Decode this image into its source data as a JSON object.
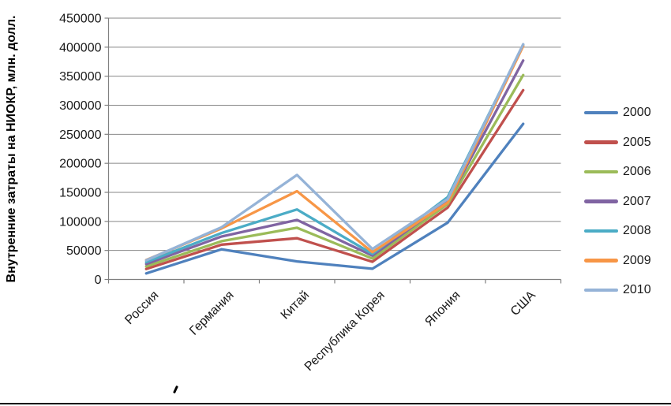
{
  "page": {
    "background": "#ffffff",
    "bottom_rule_color": "#000000"
  },
  "chart_data": {
    "type": "line",
    "title": "",
    "xlabel": "",
    "ylabel": "Внутренние затраты на НИОКР, млн. долл.",
    "categories": [
      "Россия",
      "Германия",
      "Китай",
      "Республика Корея",
      "Япония",
      "США"
    ],
    "series": [
      {
        "name": "2000",
        "color": "#4F81BD",
        "values": [
          10500,
          52000,
          31000,
          18500,
          98000,
          268000
        ]
      },
      {
        "name": "2005",
        "color": "#C0504D",
        "values": [
          18000,
          60000,
          71000,
          30500,
          124000,
          326000
        ]
      },
      {
        "name": "2006",
        "color": "#9BBB59",
        "values": [
          22500,
          66000,
          89000,
          36000,
          130000,
          352000
        ]
      },
      {
        "name": "2007",
        "color": "#8064A2",
        "values": [
          26500,
          74000,
          102500,
          41000,
          134500,
          377000
        ]
      },
      {
        "name": "2008",
        "color": "#4BACC6",
        "values": [
          30000,
          80000,
          120500,
          44000,
          142000,
          404000
        ]
      },
      {
        "name": "2009",
        "color": "#F79646",
        "values": [
          33500,
          88000,
          152000,
          47000,
          132500,
          402000
        ]
      },
      {
        "name": "2010",
        "color": "#95B3D7",
        "values": [
          33000,
          90000,
          180000,
          52500,
          138500,
          405000
        ]
      }
    ],
    "ylim": [
      0,
      450000
    ],
    "y_ticks": [
      0,
      50000,
      100000,
      150000,
      200000,
      250000,
      300000,
      350000,
      400000,
      450000
    ],
    "y_tick_labels": [
      "0",
      "50000",
      "100000",
      "150000",
      "200000",
      "250000",
      "300000",
      "350000",
      "400000",
      "450000"
    ],
    "grid": "horizontal",
    "grid_color": "#878787",
    "axis_color": "#808080",
    "text_color": "#1a1a1a",
    "legend_position": "right"
  }
}
